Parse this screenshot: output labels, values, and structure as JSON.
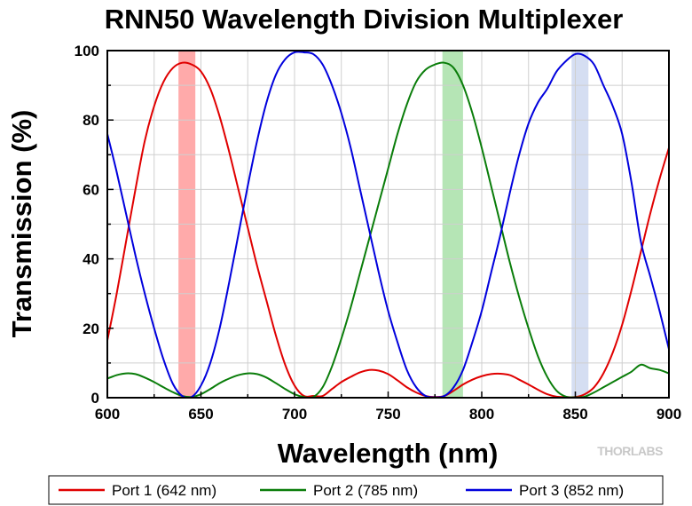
{
  "chart_data": {
    "type": "line",
    "title": "RNN50 Wavelength Division Multiplexer",
    "xlabel": "Wavelength (nm)",
    "ylabel": "Transmission (%)",
    "xlim": [
      600,
      900
    ],
    "ylim": [
      0,
      100
    ],
    "xticks": [
      600,
      650,
      700,
      750,
      800,
      850,
      900
    ],
    "xtick_labels": [
      "600",
      "650",
      "700",
      "750",
      "800",
      "850",
      "900"
    ],
    "yticks": [
      0,
      20,
      40,
      60,
      80,
      100
    ],
    "ytick_labels": [
      "0",
      "20",
      "40",
      "60",
      "80",
      "100"
    ],
    "grid": true,
    "legend_position": "bottom",
    "highlight_bands": [
      {
        "x_start": 638,
        "x_end": 647,
        "color": "#ffaaaa"
      },
      {
        "x_start": 779,
        "x_end": 790,
        "color": "#b5e5b5"
      },
      {
        "x_start": 848,
        "x_end": 857,
        "color": "#d5def2"
      }
    ],
    "series": [
      {
        "name": "Port 1 (642 nm)",
        "color": "#e00000",
        "x": [
          600,
          605,
          610,
          615,
          620,
          625,
          630,
          635,
          640,
          645,
          650,
          655,
          660,
          665,
          670,
          675,
          680,
          685,
          690,
          695,
          700,
          705,
          710,
          715,
          720,
          725,
          730,
          735,
          740,
          745,
          750,
          755,
          760,
          765,
          770,
          775,
          780,
          785,
          790,
          795,
          800,
          805,
          810,
          815,
          820,
          825,
          830,
          835,
          840,
          845,
          850,
          855,
          860,
          865,
          870,
          875,
          880,
          885,
          890,
          895,
          900
        ],
        "values": [
          16.5,
          30,
          45,
          60,
          74,
          84,
          91,
          95,
          96.5,
          96,
          94,
          89,
          81,
          71,
          60,
          49,
          38,
          28,
          18,
          9.5,
          3.5,
          0.5,
          0.5,
          0.5,
          2.5,
          4.5,
          6,
          7.3,
          8,
          7.8,
          6.8,
          5,
          3,
          1.5,
          0.5,
          0.2,
          0.5,
          2,
          3.8,
          5.2,
          6.2,
          6.8,
          6.9,
          6.5,
          5.2,
          3.8,
          2.3,
          1,
          0.3,
          0.2,
          0.2,
          1,
          3,
          7,
          13,
          21,
          31,
          42,
          53,
          63,
          72
        ]
      },
      {
        "name": "Port 2 (785 nm)",
        "color": "#0a7d0a",
        "x": [
          600,
          605,
          610,
          615,
          620,
          625,
          630,
          635,
          640,
          645,
          650,
          655,
          660,
          665,
          670,
          675,
          680,
          685,
          690,
          695,
          700,
          705,
          710,
          715,
          720,
          725,
          730,
          735,
          740,
          745,
          750,
          755,
          760,
          765,
          770,
          775,
          780,
          785,
          790,
          795,
          800,
          805,
          810,
          815,
          820,
          825,
          830,
          835,
          840,
          845,
          850,
          855,
          860,
          865,
          870,
          875,
          880,
          885,
          890,
          895,
          900
        ],
        "values": [
          5.5,
          6.5,
          7,
          6.8,
          5.8,
          4.5,
          3,
          1.6,
          0.5,
          0.2,
          1,
          2.5,
          4.2,
          5.5,
          6.5,
          7,
          6.8,
          5.8,
          4.2,
          2.5,
          1,
          0.2,
          0.2,
          3,
          9,
          17,
          26,
          36,
          46,
          56,
          66,
          76,
          84.5,
          91,
          94.5,
          96,
          96.5,
          95,
          90,
          82,
          72,
          61,
          50,
          39,
          29,
          20,
          12,
          6,
          2,
          0.3,
          0.1,
          0.3,
          1.5,
          3,
          4.5,
          6,
          7.5,
          9.5,
          8.5,
          8,
          7
        ]
      },
      {
        "name": "Port 3 (852 nm)",
        "color": "#0000dd",
        "x": [
          600,
          605,
          610,
          615,
          620,
          625,
          630,
          635,
          640,
          645,
          650,
          655,
          660,
          665,
          670,
          675,
          680,
          685,
          690,
          695,
          700,
          705,
          710,
          715,
          720,
          725,
          730,
          735,
          740,
          745,
          750,
          755,
          760,
          765,
          770,
          775,
          780,
          785,
          790,
          795,
          800,
          805,
          810,
          815,
          820,
          825,
          830,
          835,
          840,
          845,
          850,
          855,
          860,
          865,
          870,
          875,
          880,
          885,
          890,
          895,
          900
        ],
        "values": [
          76,
          65,
          53,
          41,
          30,
          20,
          11,
          4,
          0.5,
          0.2,
          3.5,
          10,
          20,
          33,
          47,
          61,
          74,
          85,
          93,
          97.5,
          99.5,
          99.5,
          99,
          96,
          90,
          82,
          72,
          60,
          48,
          36,
          25,
          16,
          8,
          3,
          0.5,
          0.1,
          0.5,
          3,
          8,
          16,
          25,
          36,
          47,
          59,
          70,
          79,
          85,
          89,
          94,
          97,
          99,
          98.5,
          96,
          90,
          84,
          76,
          62,
          45,
          35,
          25,
          14
        ]
      }
    ]
  },
  "legend": {
    "items": [
      {
        "label": "Port 1 (642 nm)",
        "color": "#e00000"
      },
      {
        "label": "Port 2 (785 nm)",
        "color": "#0a7d0a"
      },
      {
        "label": "Port 3 (852 nm)",
        "color": "#0000dd"
      }
    ]
  },
  "watermark": "THORLABS"
}
